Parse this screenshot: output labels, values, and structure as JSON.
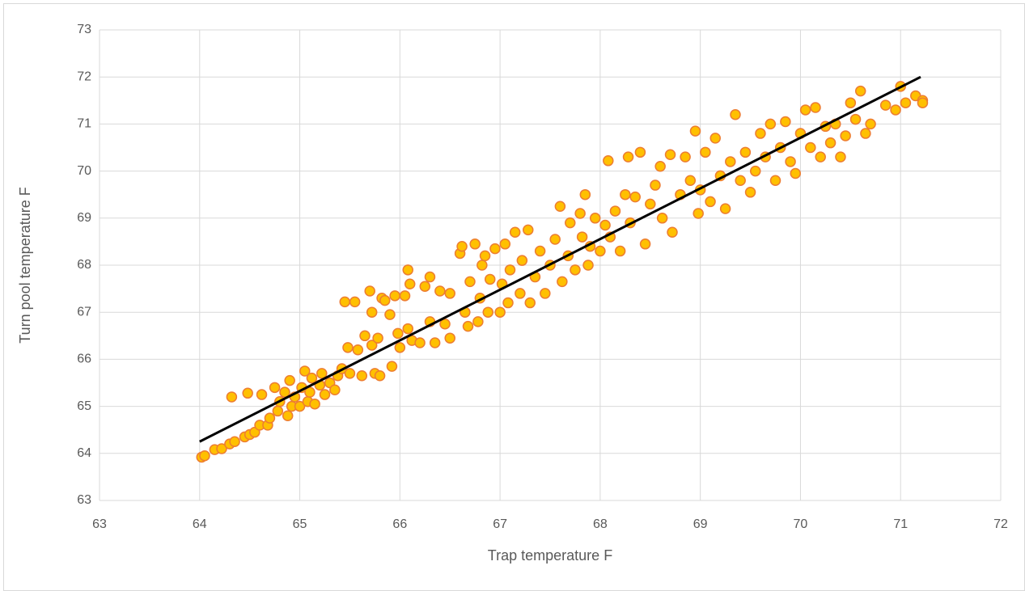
{
  "chart_data": {
    "type": "scatter",
    "xlabel": "Trap temperature F",
    "ylabel": "Turn pool temperature F",
    "xlim": [
      63,
      72
    ],
    "xticks": [
      63,
      64,
      65,
      66,
      67,
      68,
      69,
      70,
      71,
      72
    ],
    "ylim": [
      63,
      73
    ],
    "yticks": [
      63,
      64,
      65,
      66,
      67,
      68,
      69,
      70,
      71,
      72,
      73
    ],
    "grid": true,
    "color": "#ffc000",
    "edgecolor": "#ed7d31",
    "x": [
      64.02,
      64.05,
      64.15,
      64.22,
      64.3,
      64.35,
      64.32,
      64.45,
      64.5,
      64.48,
      64.55,
      64.6,
      64.62,
      64.68,
      64.7,
      64.75,
      64.78,
      64.8,
      64.85,
      64.88,
      64.9,
      64.92,
      64.95,
      65.0,
      65.02,
      65.05,
      65.08,
      65.1,
      65.12,
      65.15,
      65.2,
      65.22,
      65.25,
      65.3,
      65.35,
      65.38,
      65.42,
      65.45,
      65.48,
      65.5,
      65.55,
      65.58,
      65.62,
      65.65,
      65.7,
      65.72,
      65.72,
      65.75,
      65.78,
      65.8,
      65.82,
      65.85,
      65.9,
      65.92,
      65.95,
      65.98,
      66.0,
      66.05,
      66.08,
      66.08,
      66.1,
      66.12,
      66.2,
      66.25,
      66.3,
      66.3,
      66.35,
      66.4,
      66.45,
      66.5,
      66.5,
      66.6,
      66.62,
      66.65,
      66.68,
      66.7,
      66.75,
      66.78,
      66.8,
      66.82,
      66.85,
      66.88,
      66.9,
      66.95,
      67.0,
      67.02,
      67.05,
      67.08,
      67.1,
      67.15,
      67.2,
      67.22,
      67.28,
      67.3,
      67.35,
      67.4,
      67.45,
      67.5,
      67.55,
      67.6,
      67.62,
      67.68,
      67.7,
      67.75,
      67.8,
      67.82,
      67.85,
      67.88,
      67.9,
      67.95,
      68.0,
      68.05,
      68.08,
      68.1,
      68.15,
      68.2,
      68.25,
      68.28,
      68.3,
      68.35,
      68.4,
      68.45,
      68.5,
      68.55,
      68.6,
      68.62,
      68.7,
      68.72,
      68.8,
      68.85,
      68.9,
      68.95,
      68.98,
      69.0,
      69.05,
      69.1,
      69.15,
      69.2,
      69.25,
      69.3,
      69.35,
      69.4,
      69.45,
      69.5,
      69.55,
      69.6,
      69.65,
      69.7,
      69.75,
      69.8,
      69.85,
      69.9,
      69.95,
      70.0,
      70.05,
      70.1,
      70.15,
      70.2,
      70.25,
      70.3,
      70.35,
      70.4,
      70.45,
      70.5,
      70.55,
      70.6,
      70.65,
      70.7,
      70.85,
      70.95,
      71.0,
      71.05,
      71.15,
      71.22,
      71.22
    ],
    "values": [
      63.92,
      63.95,
      64.08,
      64.1,
      64.2,
      64.25,
      65.2,
      64.35,
      64.4,
      65.28,
      64.45,
      64.6,
      65.25,
      64.6,
      64.75,
      65.4,
      64.9,
      65.1,
      65.3,
      64.8,
      65.55,
      65.0,
      65.2,
      65.0,
      65.4,
      65.75,
      65.1,
      65.3,
      65.6,
      65.05,
      65.45,
      65.7,
      65.25,
      65.5,
      65.35,
      65.65,
      65.8,
      67.22,
      66.25,
      65.7,
      67.22,
      66.2,
      65.65,
      66.5,
      67.45,
      67.0,
      66.3,
      65.7,
      66.45,
      65.65,
      67.3,
      67.25,
      66.95,
      65.85,
      67.35,
      66.55,
      66.25,
      67.35,
      67.9,
      66.65,
      67.6,
      66.4,
      66.35,
      67.55,
      66.8,
      67.75,
      66.35,
      67.45,
      66.75,
      66.45,
      67.4,
      68.25,
      68.4,
      67.0,
      66.7,
      67.65,
      68.45,
      66.8,
      67.3,
      68.0,
      68.2,
      67.0,
      67.7,
      68.35,
      67.0,
      67.6,
      68.45,
      67.2,
      67.9,
      68.7,
      67.4,
      68.1,
      68.75,
      67.2,
      67.75,
      68.3,
      67.4,
      68.0,
      68.55,
      69.25,
      67.65,
      68.2,
      68.9,
      67.9,
      69.1,
      68.6,
      69.5,
      68.0,
      68.4,
      69.0,
      68.3,
      68.85,
      70.22,
      68.6,
      69.15,
      68.3,
      69.5,
      70.3,
      68.9,
      69.45,
      70.4,
      68.45,
      69.3,
      69.7,
      70.1,
      69.0,
      70.35,
      68.7,
      69.5,
      70.3,
      69.8,
      70.85,
      69.1,
      69.6,
      70.4,
      69.35,
      70.7,
      69.9,
      69.2,
      70.2,
      71.2,
      69.8,
      70.4,
      69.55,
      70.0,
      70.8,
      70.3,
      71.0,
      69.8,
      70.5,
      71.05,
      70.2,
      69.95,
      70.8,
      71.3,
      70.5,
      71.35,
      70.3,
      70.95,
      70.6,
      71.0,
      70.3,
      70.75,
      71.45,
      71.1,
      71.7,
      70.8,
      71.0,
      71.4,
      71.3,
      71.8,
      71.45,
      71.6,
      71.5,
      71.45
    ],
    "trendline": {
      "x": [
        64,
        71.2
      ],
      "y": [
        64.25,
        72.0
      ],
      "color": "#000000"
    }
  }
}
